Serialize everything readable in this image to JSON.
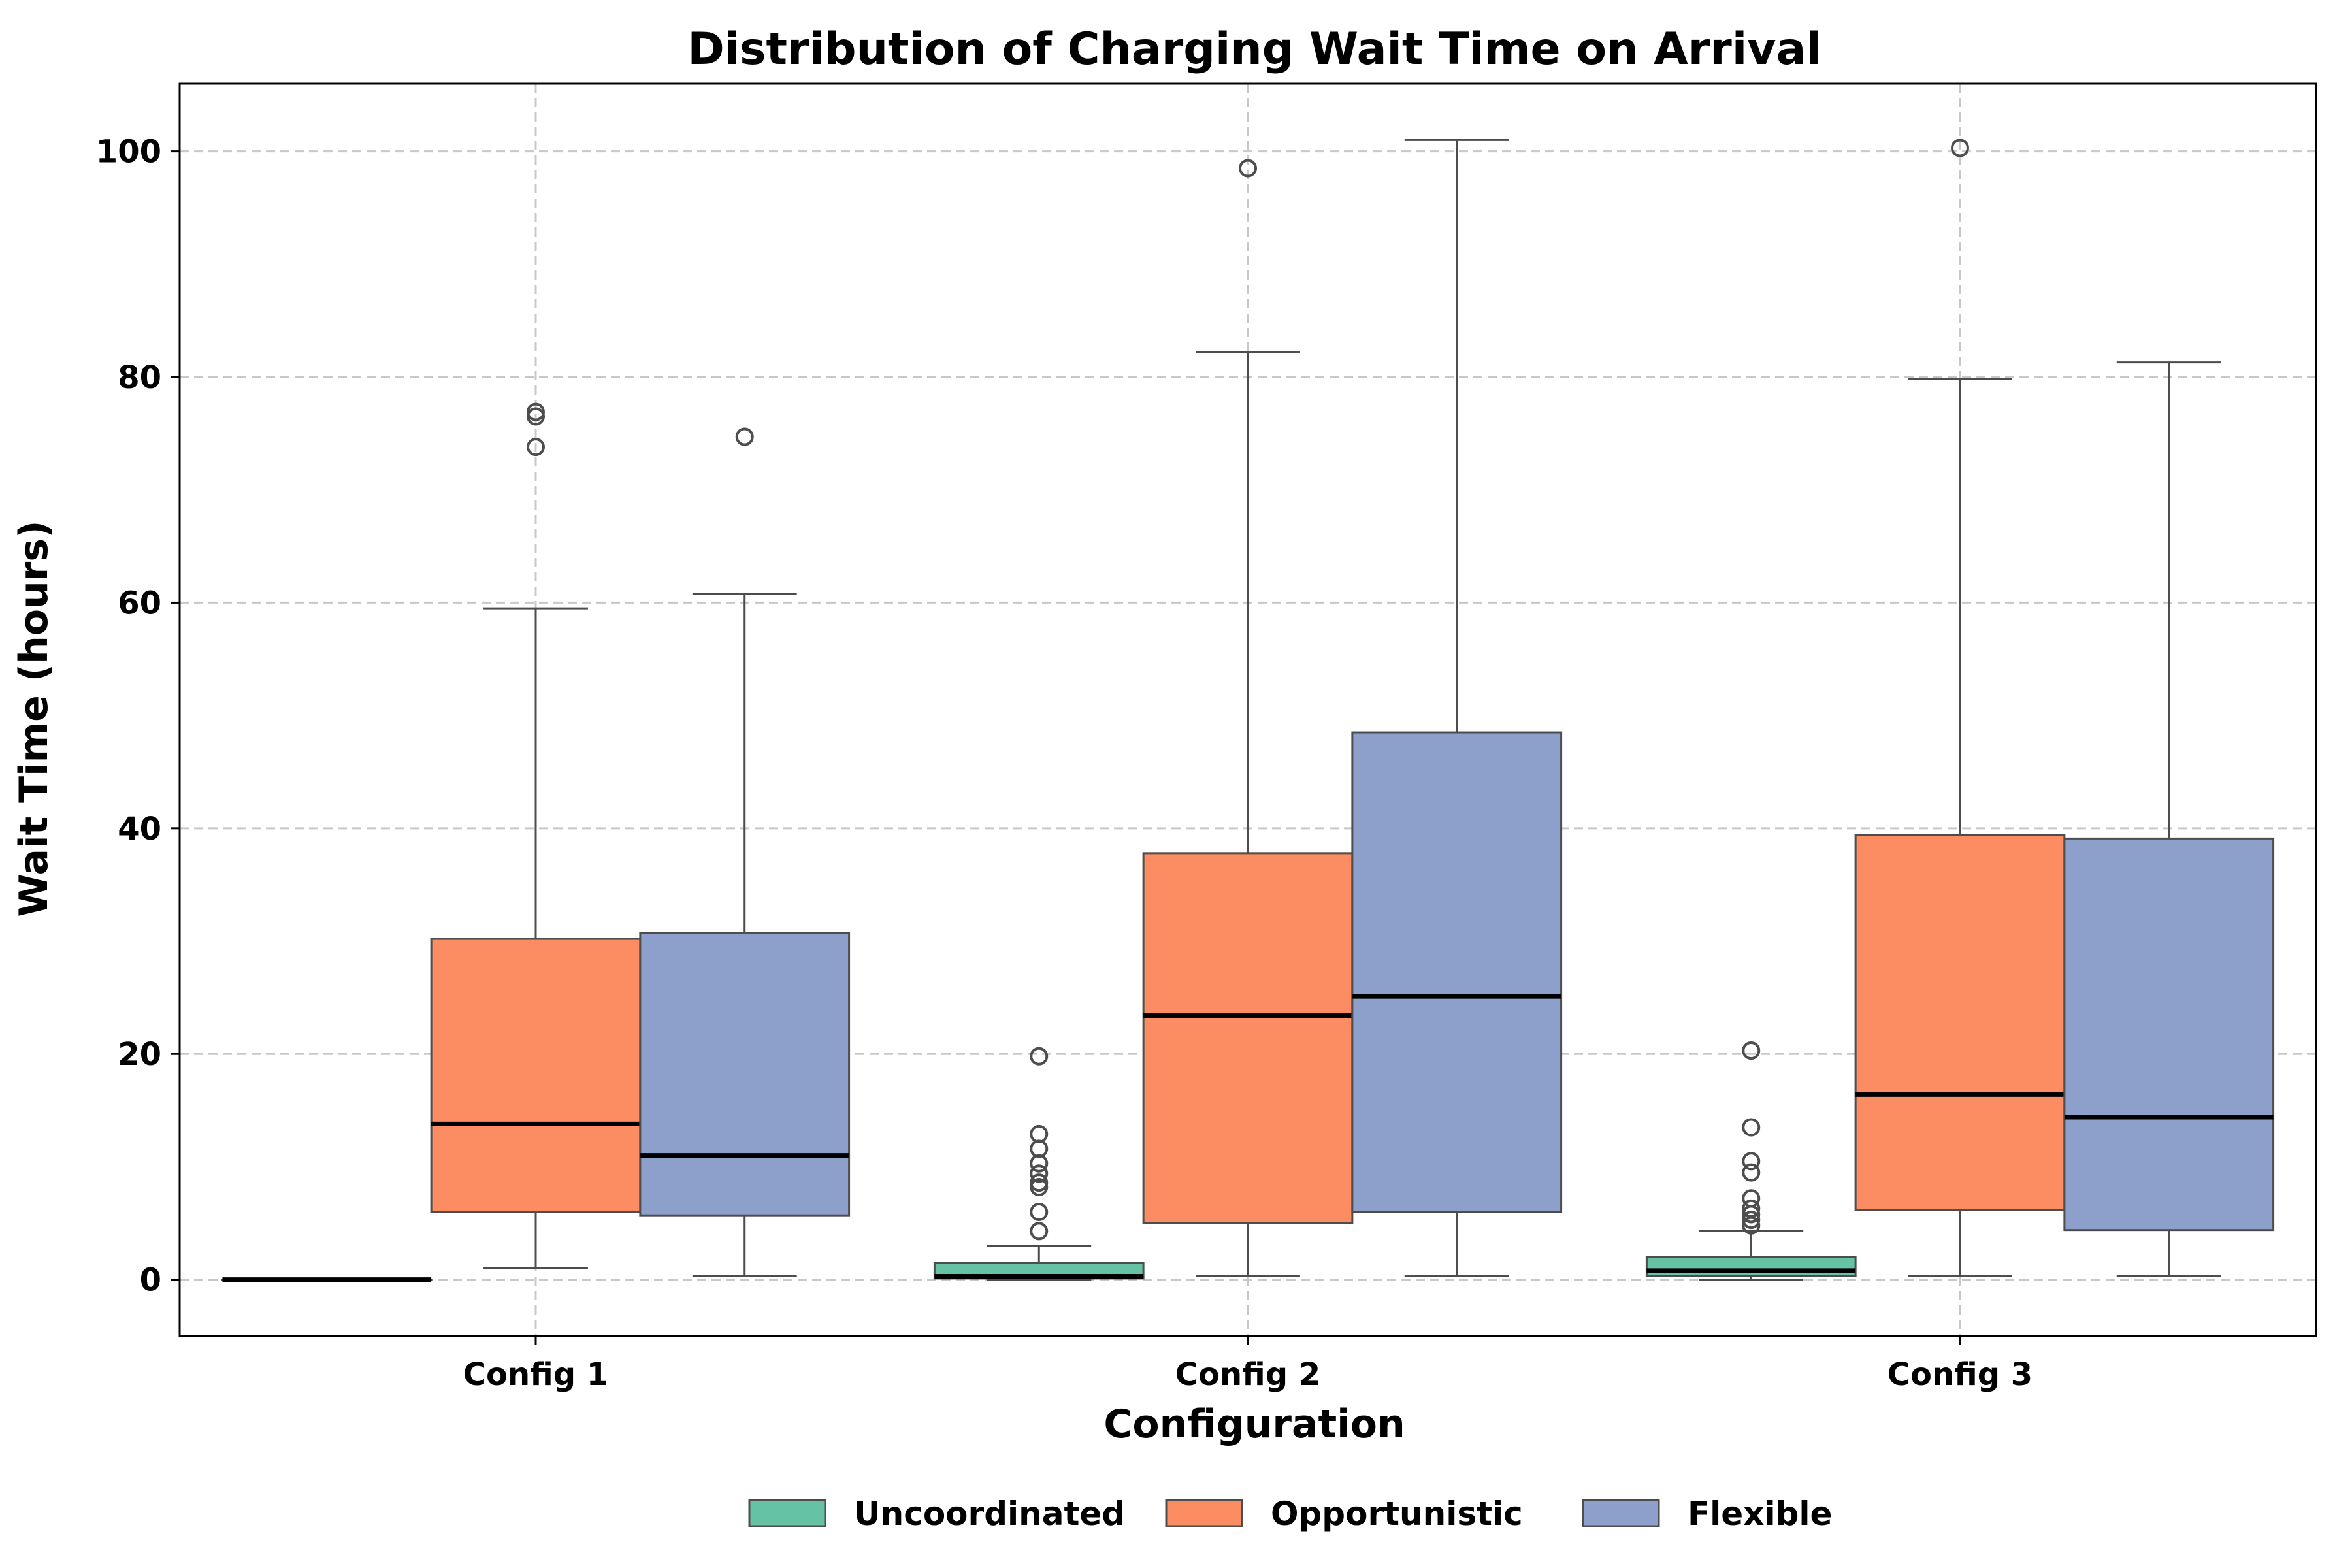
{
  "chart_data": {
    "type": "boxplot",
    "title": "Distribution of Charging Wait Time on Arrival",
    "xlabel": "Configuration",
    "ylabel": "Wait Time (hours)",
    "ylim": [
      -5,
      106
    ],
    "yticks": [
      0,
      20,
      40,
      60,
      80,
      100
    ],
    "grid": true,
    "legend_position": "bottom-center",
    "categories": [
      "Config 1",
      "Config 2",
      "Config 3"
    ],
    "series": [
      {
        "name": "Uncoordinated",
        "color": "#66c2a5",
        "boxes": [
          {
            "min": 0.0,
            "q1": 0.0,
            "median": 0.0,
            "q3": 0.0,
            "max": 0.0,
            "outliers": []
          },
          {
            "min": 0.0,
            "q1": 0.1,
            "median": 0.3,
            "q3": 1.5,
            "max": 3.0,
            "outliers": [
              4.3,
              6.0,
              8.2,
              8.6,
              9.4,
              10.3,
              11.6,
              12.9,
              19.8
            ]
          },
          {
            "min": 0.0,
            "q1": 0.3,
            "median": 0.8,
            "q3": 2.0,
            "max": 4.3,
            "outliers": [
              4.8,
              5.3,
              5.8,
              6.3,
              7.2,
              9.5,
              10.5,
              13.5,
              20.3
            ]
          }
        ]
      },
      {
        "name": "Opportunistic",
        "color": "#fc8d62",
        "boxes": [
          {
            "min": 1.0,
            "q1": 6.0,
            "median": 13.8,
            "q3": 30.2,
            "max": 59.5,
            "outliers": [
              73.8,
              76.5,
              76.9
            ]
          },
          {
            "min": 0.3,
            "q1": 5.0,
            "median": 23.4,
            "q3": 37.8,
            "max": 82.2,
            "outliers": [
              98.5
            ]
          },
          {
            "min": 0.3,
            "q1": 6.2,
            "median": 16.4,
            "q3": 39.4,
            "max": 79.8,
            "outliers": [
              100.3
            ]
          }
        ]
      },
      {
        "name": "Flexible",
        "color": "#8da0cb",
        "boxes": [
          {
            "min": 0.3,
            "q1": 5.7,
            "median": 11.0,
            "q3": 30.7,
            "max": 60.8,
            "outliers": [
              74.7
            ]
          },
          {
            "min": 0.3,
            "q1": 6.0,
            "median": 25.1,
            "q3": 48.5,
            "max": 101.0,
            "outliers": []
          },
          {
            "min": 0.3,
            "q1": 4.4,
            "median": 14.4,
            "q3": 39.1,
            "max": 81.3,
            "outliers": []
          }
        ]
      }
    ]
  }
}
